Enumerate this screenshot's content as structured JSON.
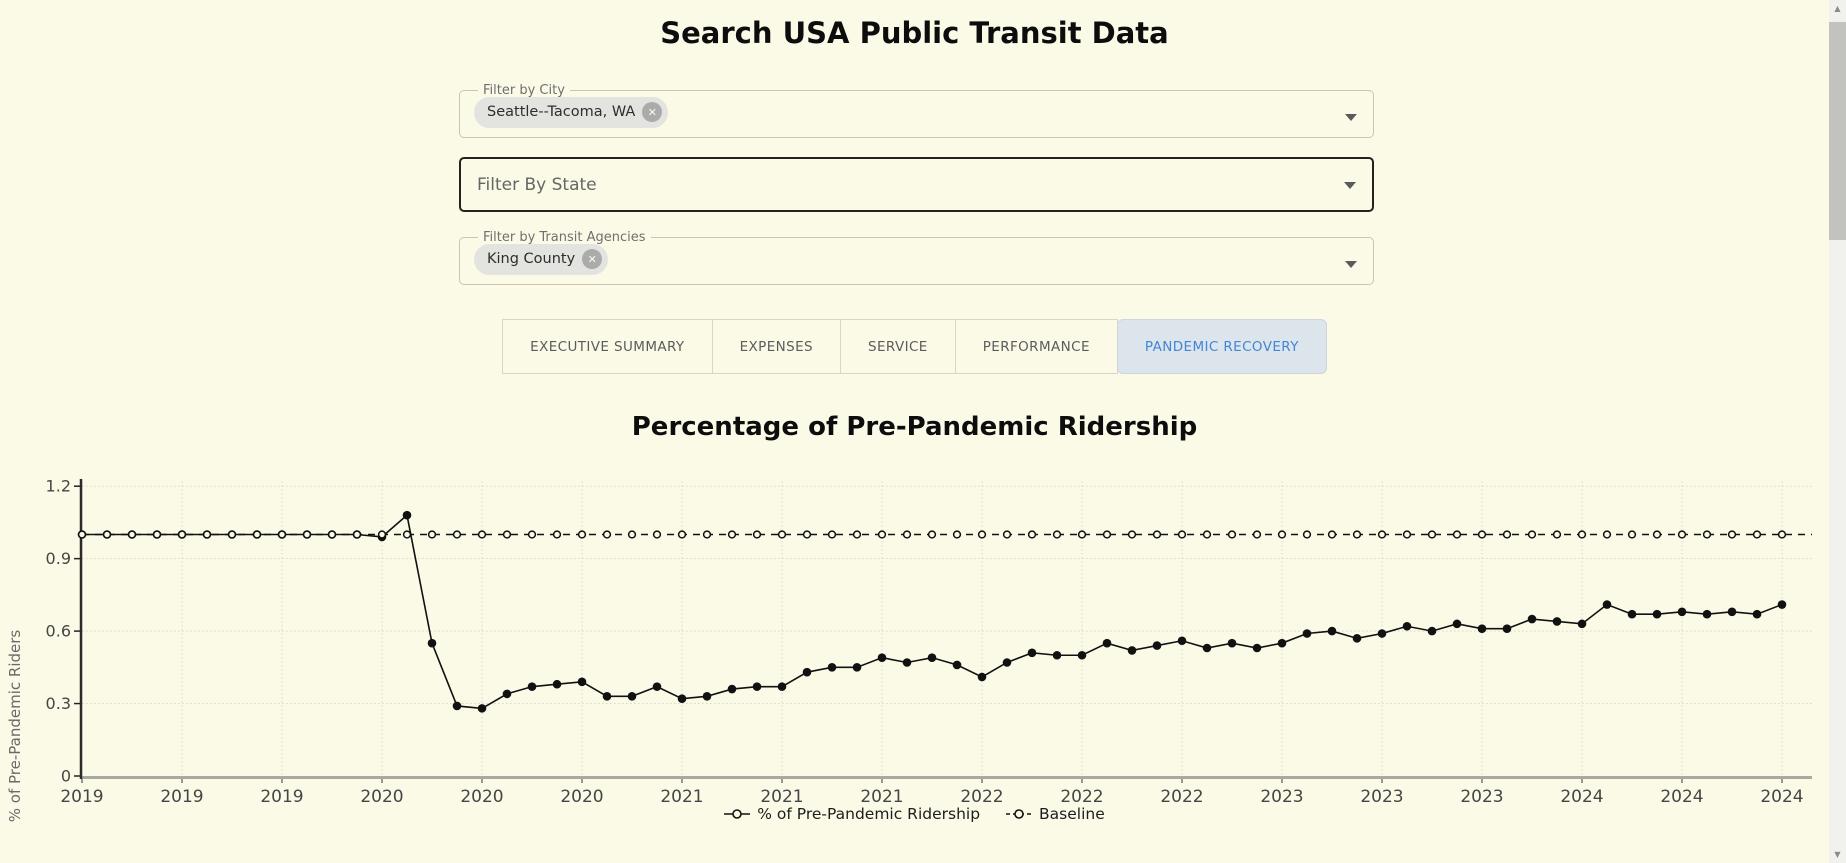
{
  "page": {
    "title": "Search USA Public Transit Data",
    "background_color": "#fbfae7"
  },
  "filters": {
    "city": {
      "label": "Filter by City",
      "chips": [
        {
          "label": "Seattle--Tacoma, WA",
          "close_icon": "✕"
        }
      ]
    },
    "state": {
      "placeholder": "Filter By State"
    },
    "agencies": {
      "label": "Filter by Transit Agencies",
      "chips": [
        {
          "label": "King County",
          "close_icon": "✕"
        }
      ]
    }
  },
  "tabs": [
    {
      "label": "EXECUTIVE SUMMARY",
      "active": false
    },
    {
      "label": "EXPENSES",
      "active": false
    },
    {
      "label": "SERVICE",
      "active": false
    },
    {
      "label": "PERFORMANCE",
      "active": false
    },
    {
      "label": "PANDEMIC RECOVERY",
      "active": true
    }
  ],
  "tab_colors": {
    "active_text": "#4286d6",
    "active_bg": "#dce5eb",
    "inactive_text": "#5c5c5c"
  },
  "chart": {
    "title": "Percentage of Pre-Pandemic Ridership"
  },
  "chart_data": {
    "type": "line",
    "title": "Percentage of Pre-Pandemic Ridership",
    "xlabel": "",
    "ylabel": "% of Pre-Pandemic Riders",
    "ylim": [
      0,
      1.2
    ],
    "yticks": [
      0,
      0.3,
      0.6,
      0.9,
      1.2
    ],
    "ytick_labels": [
      "0",
      "0.3",
      "0.6",
      "0.9",
      "1.2"
    ],
    "x_range": {
      "start": "2019-01",
      "end": "2024-09",
      "interval": "monthly",
      "points": 69
    },
    "x_tick_every_months": 4,
    "x_tick_labels": [
      "2019",
      "2019",
      "2019",
      "2020",
      "2020",
      "2020",
      "2021",
      "2021",
      "2021",
      "2022",
      "2022",
      "2022",
      "2023",
      "2023",
      "2023",
      "2024",
      "2024",
      "2024"
    ],
    "grid": true,
    "legend_position": "bottom",
    "series": [
      {
        "name": "% of Pre-Pandemic Ridership",
        "line": "solid",
        "marker": "filled-circle",
        "color": "#111111",
        "values": [
          1.0,
          1.0,
          1.0,
          1.0,
          1.0,
          1.0,
          1.0,
          1.0,
          1.0,
          1.0,
          1.0,
          1.0,
          0.99,
          1.08,
          0.55,
          0.29,
          0.28,
          0.34,
          0.37,
          0.38,
          0.39,
          0.33,
          0.33,
          0.37,
          0.32,
          0.33,
          0.36,
          0.37,
          0.37,
          0.43,
          0.45,
          0.45,
          0.49,
          0.47,
          0.49,
          0.46,
          0.41,
          0.47,
          0.51,
          0.5,
          0.5,
          0.55,
          0.52,
          0.54,
          0.56,
          0.53,
          0.55,
          0.53,
          0.55,
          0.59,
          0.6,
          0.57,
          0.59,
          0.62,
          0.6,
          0.63,
          0.61,
          0.61,
          0.65,
          0.64,
          0.63,
          0.71,
          0.67,
          0.67,
          0.68,
          0.67,
          0.68,
          0.67,
          0.71
        ]
      },
      {
        "name": "Baseline",
        "line": "dashed",
        "marker": "open-circle",
        "color": "#111111",
        "constant_value": 1.0
      }
    ]
  }
}
